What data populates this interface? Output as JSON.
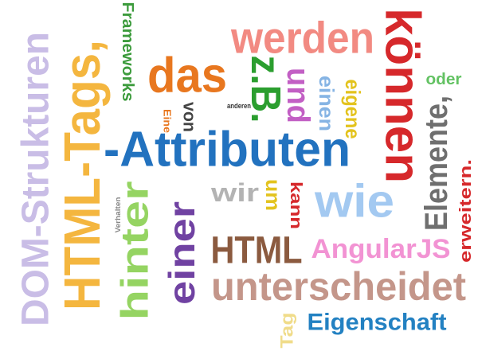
{
  "words": [
    {
      "text": "DOM-Strukturen",
      "color": "#c9bde6"
    },
    {
      "text": "HTML-Tags,",
      "color": "#f4b63f"
    },
    {
      "text": "Frameworks",
      "color": "#3c9b3c"
    },
    {
      "text": "das",
      "color": "#e8771f"
    },
    {
      "text": "werden",
      "color": "#f28a82"
    },
    {
      "text": "können",
      "color": "#d6282b"
    },
    {
      "text": "z.B.",
      "color": "#2b9e2f"
    },
    {
      "text": "und",
      "color": "#c25fc4"
    },
    {
      "text": "einen",
      "color": "#86b4e4"
    },
    {
      "text": "eigene",
      "color": "#e3c31e"
    },
    {
      "text": "oder",
      "color": "#63c263"
    },
    {
      "text": "Elemente,",
      "color": "#6f6f6f"
    },
    {
      "text": "erweitern.",
      "color": "#d6282b"
    },
    {
      "text": "-Attributen",
      "color": "#2272bf"
    },
    {
      "text": "anderen",
      "color": "#333333"
    },
    {
      "text": "Eine",
      "color": "#e8771f"
    },
    {
      "text": "von",
      "color": "#444444"
    },
    {
      "text": "wir",
      "color": "#b3b3b3"
    },
    {
      "text": "um",
      "color": "#e3c31e"
    },
    {
      "text": "kann",
      "color": "#d6282b"
    },
    {
      "text": "wie",
      "color": "#a3c9f1"
    },
    {
      "text": "hinter",
      "color": "#95d462"
    },
    {
      "text": "Verhalten",
      "color": "#888888"
    },
    {
      "text": "einer",
      "color": "#7042a2"
    },
    {
      "text": "HTML",
      "color": "#8b5a3f"
    },
    {
      "text": "AngularJS",
      "color": "#f293d3"
    },
    {
      "text": "unterscheidet",
      "color": "#c4968a"
    },
    {
      "text": "Tag",
      "color": "#f0dc8a"
    },
    {
      "text": "Eigenschaft",
      "color": "#2381c2"
    }
  ]
}
